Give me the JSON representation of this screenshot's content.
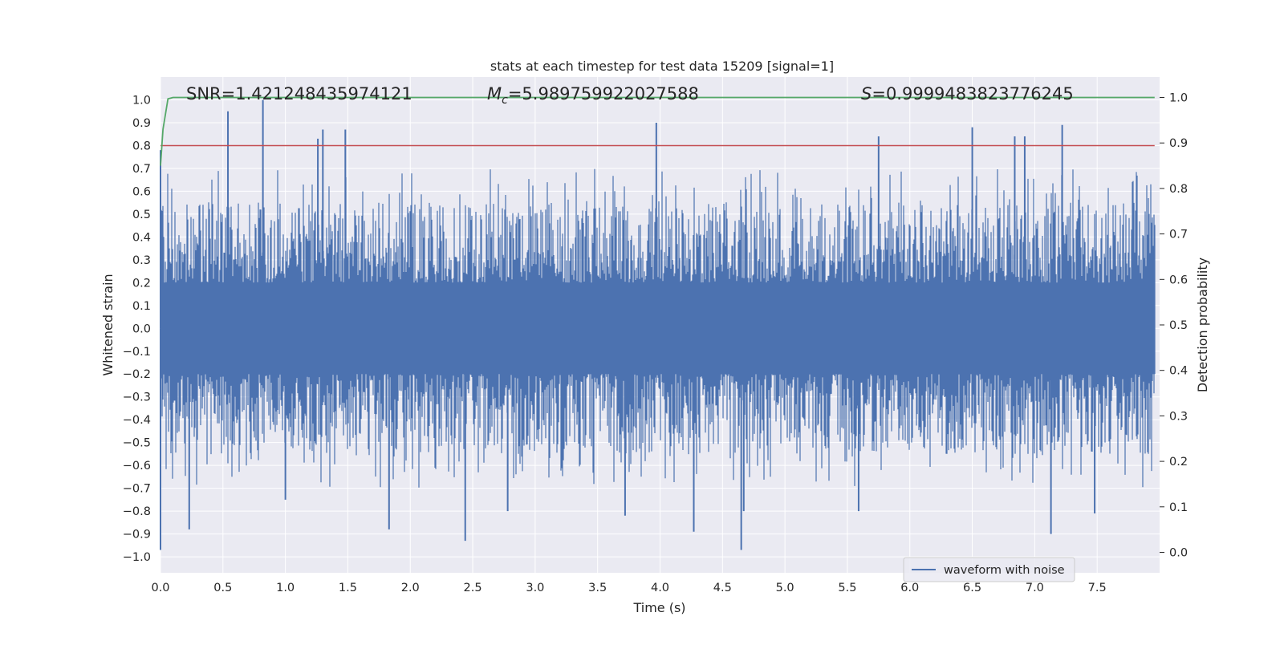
{
  "chart_data": {
    "type": "line",
    "title": "stats at each timestep for test data 15209 [signal=1]",
    "xlabel": "Time (s)",
    "ylabel": "Whitened strain",
    "y2label": "Detection probability",
    "xlim": [
      0.0,
      8.0
    ],
    "ylim": [
      -1.07,
      1.1
    ],
    "y2lim": [
      -0.045,
      1.045
    ],
    "x_ticks": [
      0.0,
      0.5,
      1.0,
      1.5,
      2.0,
      2.5,
      3.0,
      3.5,
      4.0,
      4.5,
      5.0,
      5.5,
      6.0,
      6.5,
      7.0,
      7.5
    ],
    "x_tick_labels": [
      "0.0",
      "0.5",
      "1.0",
      "1.5",
      "2.0",
      "2.5",
      "3.0",
      "3.5",
      "4.0",
      "4.5",
      "5.0",
      "5.5",
      "6.0",
      "6.5",
      "7.0",
      "7.5"
    ],
    "y_ticks": [
      1.0,
      0.9,
      0.8,
      0.7,
      0.6,
      0.5,
      0.4,
      0.3,
      0.2,
      0.1,
      0.0,
      -0.1,
      -0.2,
      -0.3,
      -0.4,
      -0.5,
      -0.6,
      -0.7,
      -0.8,
      -0.9,
      -1.0
    ],
    "y_tick_labels": [
      "1.0",
      "0.9",
      "0.8",
      "0.7",
      "0.6",
      "0.5",
      "0.4",
      "0.3",
      "0.2",
      "0.1",
      "0.0",
      "−0.1",
      "−0.2",
      "−0.3",
      "−0.4",
      "−0.5",
      "−0.6",
      "−0.7",
      "−0.8",
      "−0.9",
      "−1.0"
    ],
    "y2_ticks": [
      1.0,
      0.9,
      0.8,
      0.7,
      0.6,
      0.5,
      0.4,
      0.3,
      0.2,
      0.1,
      0.0
    ],
    "y2_tick_labels": [
      "1.0",
      "0.9",
      "0.8",
      "0.7",
      "0.6",
      "0.5",
      "0.4",
      "0.3",
      "0.2",
      "0.1",
      "0.0"
    ],
    "grid": true,
    "legend": {
      "position": "bottom-right",
      "entries": [
        "waveform with noise"
      ]
    },
    "annotations": {
      "snr": "SNR=1.421248435974121",
      "mc_prefix": "M",
      "mc_sub": "c",
      "mc_value": "=5.989759922027588",
      "s_prefix": "S",
      "s_value": "=0.9999483823776245"
    },
    "series": [
      {
        "name": "waveform with noise",
        "axis": "left",
        "color": "#4c72b0",
        "kind": "dense-noise",
        "duration_s": 7.96,
        "core_band": [
          -0.2,
          0.2
        ],
        "spikes": [
          {
            "t": 0.0,
            "v": 0.78
          },
          {
            "t": 0.0,
            "v": -0.97
          },
          {
            "t": 0.23,
            "v": -0.88
          },
          {
            "t": 0.54,
            "v": 0.95
          },
          {
            "t": 0.82,
            "v": 1.0
          },
          {
            "t": 1.0,
            "v": -0.75
          },
          {
            "t": 1.26,
            "v": 0.83
          },
          {
            "t": 1.3,
            "v": 0.87
          },
          {
            "t": 1.48,
            "v": 0.87
          },
          {
            "t": 1.83,
            "v": -0.88
          },
          {
            "t": 2.44,
            "v": -0.93
          },
          {
            "t": 2.78,
            "v": -0.8
          },
          {
            "t": 3.72,
            "v": -0.82
          },
          {
            "t": 3.97,
            "v": 0.9
          },
          {
            "t": 4.27,
            "v": -0.89
          },
          {
            "t": 4.65,
            "v": -0.97
          },
          {
            "t": 4.67,
            "v": -0.8
          },
          {
            "t": 5.59,
            "v": -0.8
          },
          {
            "t": 5.75,
            "v": 0.84
          },
          {
            "t": 6.5,
            "v": 0.88
          },
          {
            "t": 6.84,
            "v": 0.84
          },
          {
            "t": 6.92,
            "v": 0.84
          },
          {
            "t": 7.13,
            "v": -0.9
          },
          {
            "t": 7.22,
            "v": 0.89
          },
          {
            "t": 7.48,
            "v": -0.81
          }
        ]
      },
      {
        "name": "threshold",
        "axis": "left",
        "color": "#c44e52",
        "x": [
          0.0,
          7.96
        ],
        "y": [
          0.8,
          0.8
        ]
      },
      {
        "name": "detection probability",
        "axis": "right",
        "color": "#55a868",
        "x": [
          0.0,
          0.02,
          0.06,
          0.1,
          0.5,
          1.0,
          2.0,
          4.0,
          6.0,
          7.96
        ],
        "y": [
          0.85,
          0.93,
          0.997,
          1.0,
          1.0,
          1.0,
          1.0,
          1.0,
          1.0,
          1.0
        ]
      }
    ]
  }
}
